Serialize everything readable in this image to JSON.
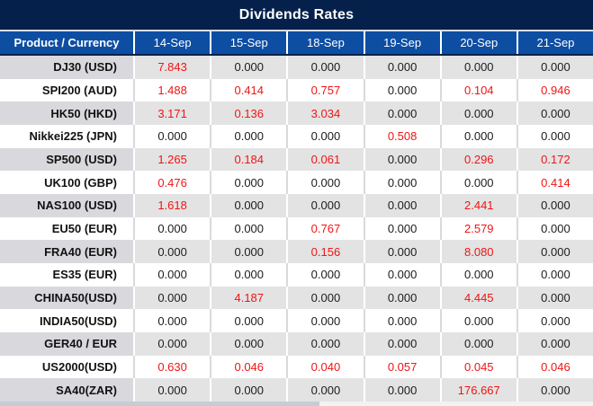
{
  "title": "Dividends Rates",
  "columns": [
    "Product / Currency",
    "14-Sep",
    "15-Sep",
    "18-Sep",
    "19-Sep",
    "20-Sep",
    "21-Sep"
  ],
  "rows": [
    {
      "product": "DJ30 (USD)",
      "values": [
        "7.843",
        "0.000",
        "0.000",
        "0.000",
        "0.000",
        "0.000"
      ]
    },
    {
      "product": "SPI200 (AUD)",
      "values": [
        "1.488",
        "0.414",
        "0.757",
        "0.000",
        "0.104",
        "0.946"
      ]
    },
    {
      "product": "HK50 (HKD)",
      "values": [
        "3.171",
        "0.136",
        "3.034",
        "0.000",
        "0.000",
        "0.000"
      ]
    },
    {
      "product": "Nikkei225 (JPN)",
      "values": [
        "0.000",
        "0.000",
        "0.000",
        "0.508",
        "0.000",
        "0.000"
      ]
    },
    {
      "product": "SP500 (USD)",
      "values": [
        "1.265",
        "0.184",
        "0.061",
        "0.000",
        "0.296",
        "0.172"
      ]
    },
    {
      "product": "UK100 (GBP)",
      "values": [
        "0.476",
        "0.000",
        "0.000",
        "0.000",
        "0.000",
        "0.414"
      ]
    },
    {
      "product": "NAS100 (USD)",
      "values": [
        "1.618",
        "0.000",
        "0.000",
        "0.000",
        "2.441",
        "0.000"
      ]
    },
    {
      "product": "EU50 (EUR)",
      "values": [
        "0.000",
        "0.000",
        "0.767",
        "0.000",
        "2.579",
        "0.000"
      ]
    },
    {
      "product": "FRA40 (EUR)",
      "values": [
        "0.000",
        "0.000",
        "0.156",
        "0.000",
        "8.080",
        "0.000"
      ]
    },
    {
      "product": "ES35 (EUR)",
      "values": [
        "0.000",
        "0.000",
        "0.000",
        "0.000",
        "0.000",
        "0.000"
      ]
    },
    {
      "product": "CHINA50(USD)",
      "values": [
        "0.000",
        "4.187",
        "0.000",
        "0.000",
        "4.445",
        "0.000"
      ]
    },
    {
      "product": "INDIA50(USD)",
      "values": [
        "0.000",
        "0.000",
        "0.000",
        "0.000",
        "0.000",
        "0.000"
      ]
    },
    {
      "product": "GER40 / EUR",
      "values": [
        "0.000",
        "0.000",
        "0.000",
        "0.000",
        "0.000",
        "0.000"
      ]
    },
    {
      "product": "US2000(USD)",
      "values": [
        "0.630",
        "0.046",
        "0.040",
        "0.057",
        "0.045",
        "0.046"
      ]
    },
    {
      "product": "SA40(ZAR)",
      "values": [
        "0.000",
        "0.000",
        "0.000",
        "0.000",
        "176.667",
        "0.000"
      ]
    }
  ],
  "colors": {
    "title_bg": "#05214b",
    "header_bg": "#0d4ea3",
    "separator": "#d7dce6",
    "row_gray": "#e3e3e3",
    "row_gray_label": "#d9d9dd",
    "value_text": "#1c1c1c",
    "nonzero_red": "#f01515",
    "scrollbar_track": "#f2f2f2",
    "scrollbar_thumb": "#c7ccd4"
  }
}
